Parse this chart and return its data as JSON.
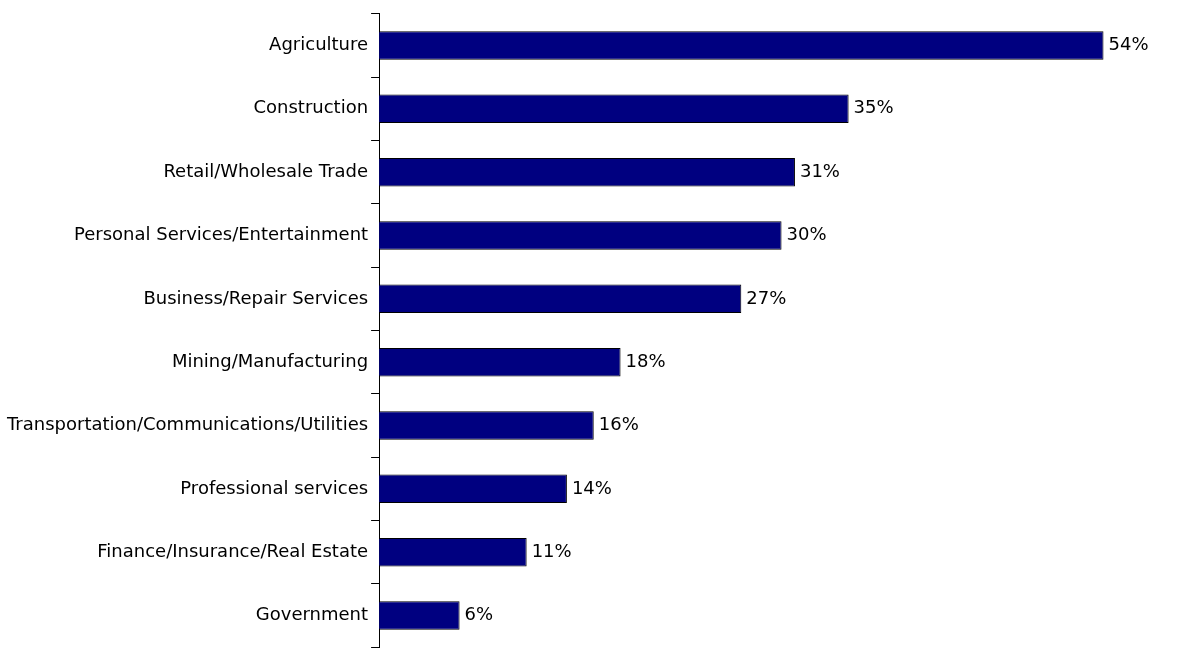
{
  "chart_data": {
    "type": "bar",
    "orientation": "horizontal",
    "categories": [
      "Agriculture",
      "Construction",
      "Retail/Wholesale Trade",
      "Personal Services/Entertainment",
      "Business/Repair Services",
      "Mining/Manufacturing",
      "Transportation/Communications/Utilities",
      "Professional services",
      "Finance/Insurance/Real Estate",
      "Government"
    ],
    "values": [
      54,
      35,
      31,
      30,
      27,
      18,
      16,
      14,
      11,
      6
    ],
    "value_labels": [
      "54%",
      "35%",
      "31%",
      "30%",
      "27%",
      "18%",
      "16%",
      "14%",
      "11%",
      "6%"
    ],
    "color": "#000080",
    "legend": false
  }
}
